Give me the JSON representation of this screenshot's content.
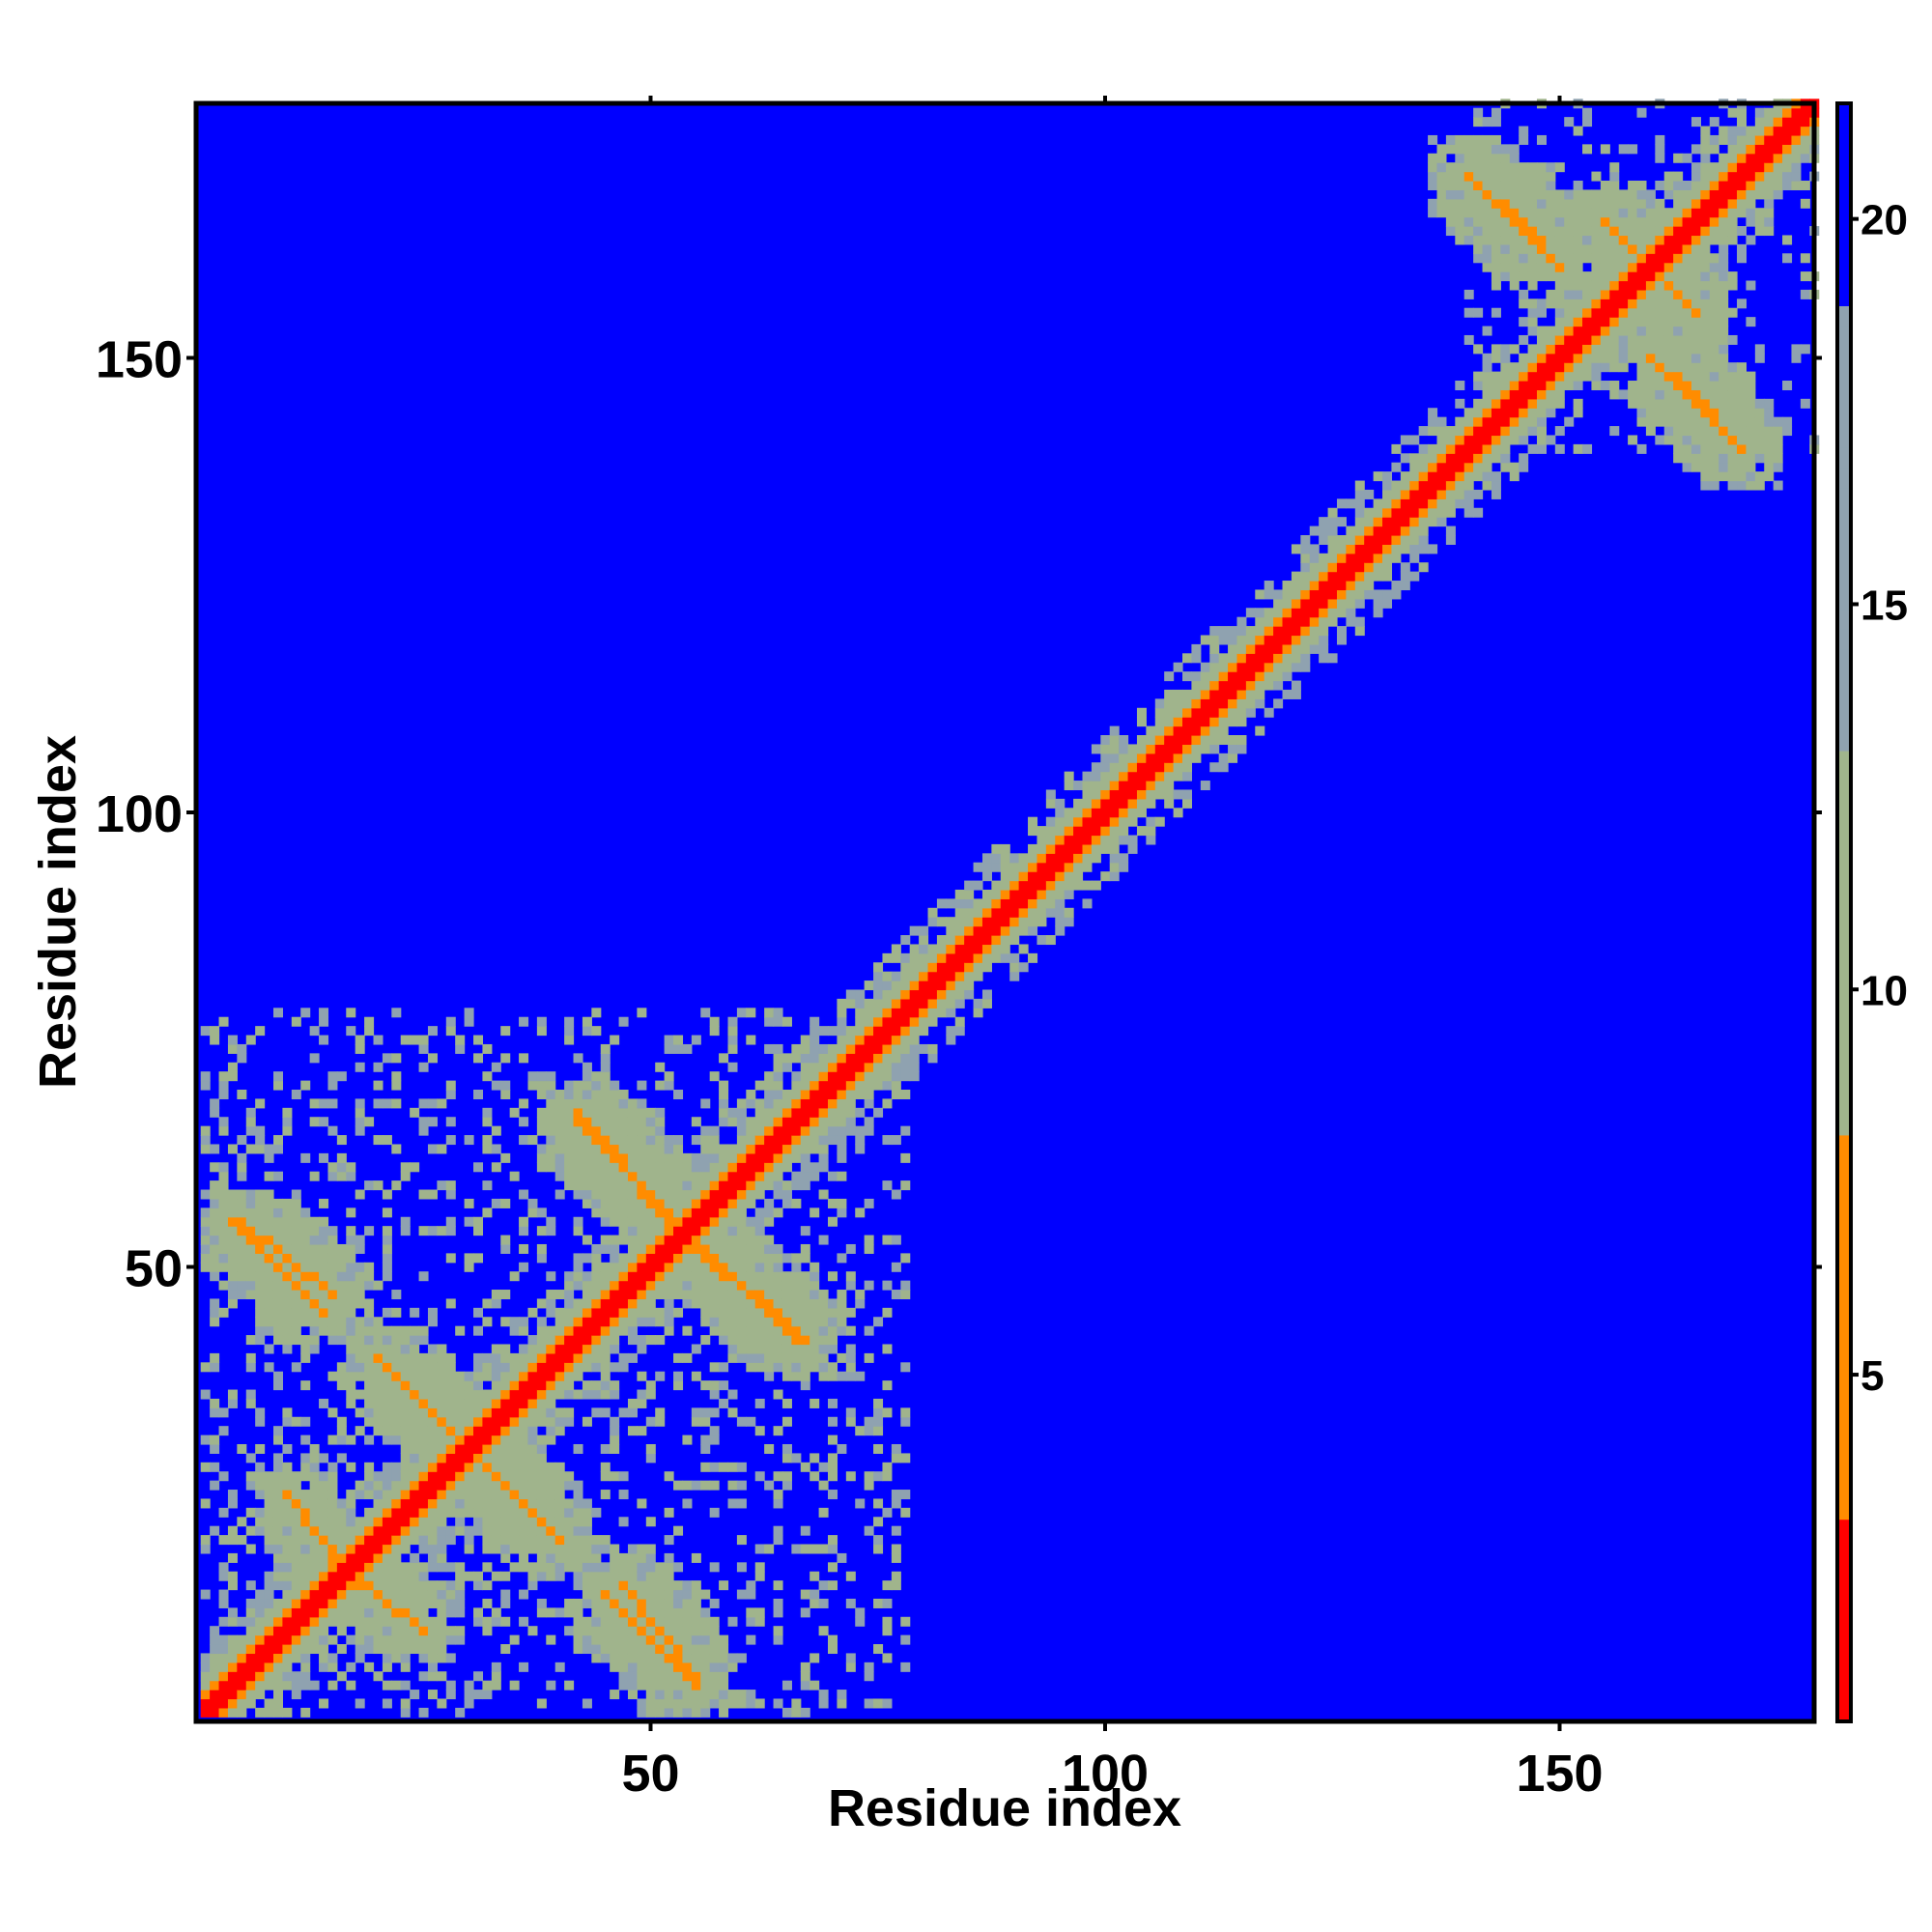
{
  "chart_data": {
    "type": "heatmap",
    "title": "",
    "xlabel": "Residue index",
    "ylabel": "Residue index",
    "xlim": [
      1,
      178
    ],
    "ylim": [
      1,
      178
    ],
    "x_ticks": [
      50,
      100,
      150
    ],
    "y_ticks": [
      50,
      100,
      150
    ],
    "x_tick_labels": [
      "50",
      "100",
      "150"
    ],
    "y_tick_labels": [
      "50",
      "100",
      "150"
    ],
    "colorbar": {
      "range": [
        0.5,
        21.5
      ],
      "ticks": [
        5,
        10,
        15,
        20
      ],
      "tick_labels": [
        "5",
        "10",
        "15",
        "20"
      ]
    },
    "colors": {
      "background": "#0000ff",
      "contact_near": "#ff0000",
      "contact_mid": "#ff8c00",
      "contact_far": "#a0b48c"
    },
    "diagonal_band": [
      [
        1,
        178
      ]
    ],
    "off_diagonal_contacts": [
      {
        "from": [
          4,
          55
        ],
        "to": [
          14,
          45
        ],
        "value": 6
      },
      {
        "from": [
          20,
          40
        ],
        "to": [
          37,
          23
        ],
        "value": 6
      },
      {
        "from": [
          42,
          66
        ],
        "to": [
          56,
          51
        ],
        "value": 5
      },
      {
        "from": [
          47,
          15
        ],
        "to": [
          55,
          5
        ],
        "value": 6
      },
      {
        "from": [
          56,
          52
        ],
        "to": [
          67,
          42
        ],
        "value": 6
      },
      {
        "from": [
          10,
          25
        ],
        "to": [
          16,
          17
        ],
        "value": 7
      },
      {
        "from": [
          140,
          170
        ],
        "to": [
          150,
          160
        ],
        "value": 6
      },
      {
        "from": [
          163,
          148
        ],
        "to": [
          170,
          140
        ],
        "value": 6
      },
      {
        "from": [
          155,
          165
        ],
        "to": [
          165,
          155
        ],
        "value": 7
      }
    ],
    "note_regions": [
      {
        "x": [
          1,
          78
        ],
        "y": [
          1,
          78
        ],
        "value": 13
      },
      {
        "x": [
          140,
          178
        ],
        "y": [
          140,
          178
        ],
        "value": 14
      }
    ]
  }
}
